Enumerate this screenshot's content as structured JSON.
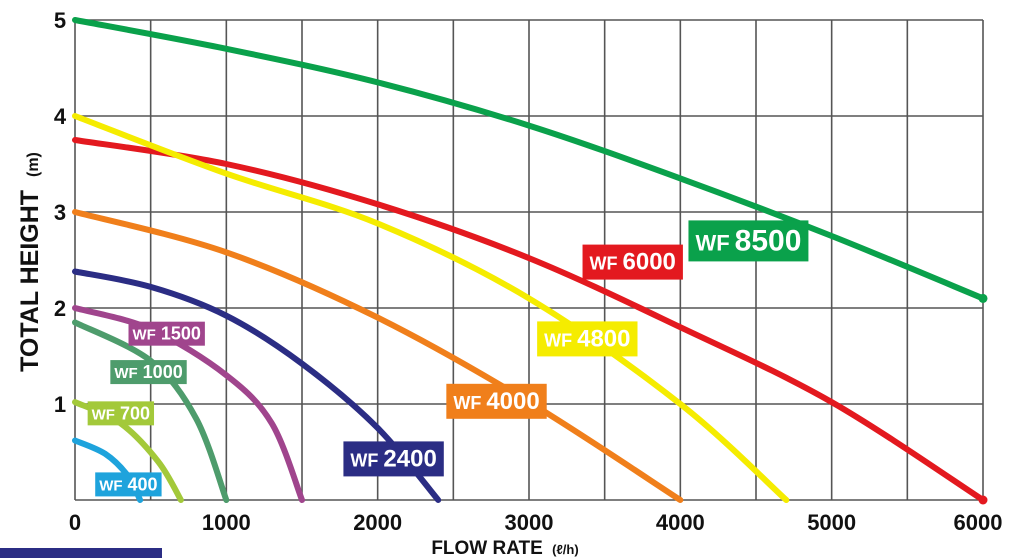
{
  "chart_data": {
    "type": "line",
    "xlabel": "FLOW RATE",
    "xunit": "(ℓ/h)",
    "ylabel": "TOTAL HEIGHT",
    "yunit": "(m)",
    "xlim": [
      0,
      6000
    ],
    "ylim": [
      0,
      5
    ],
    "x_ticks": [
      "0",
      "1000",
      "2000",
      "3000",
      "4000",
      "5000",
      "6000"
    ],
    "y_ticks": [
      "1",
      "2",
      "3",
      "4",
      "5"
    ],
    "grid": true,
    "series": [
      {
        "name": "WF 8500",
        "color": "#0aa14b",
        "points": [
          [
            0,
            5.0
          ],
          [
            1000,
            4.7
          ],
          [
            2000,
            4.35
          ],
          [
            3000,
            3.9
          ],
          [
            4000,
            3.35
          ],
          [
            5000,
            2.75
          ],
          [
            6000,
            2.1
          ]
        ]
      },
      {
        "name": "WF 6000",
        "color": "#e3191f",
        "points": [
          [
            0,
            3.75
          ],
          [
            1000,
            3.5
          ],
          [
            2000,
            3.08
          ],
          [
            3000,
            2.52
          ],
          [
            4000,
            1.8
          ],
          [
            5000,
            1.02
          ],
          [
            6000,
            0.0
          ]
        ]
      },
      {
        "name": "WF 4800",
        "color": "#f5ec00",
        "points": [
          [
            0,
            4.0
          ],
          [
            1000,
            3.4
          ],
          [
            2000,
            2.88
          ],
          [
            3000,
            2.1
          ],
          [
            4000,
            1.0
          ],
          [
            4700,
            0.0
          ]
        ]
      },
      {
        "name": "WF 4000",
        "color": "#f07f1b",
        "points": [
          [
            0,
            3.0
          ],
          [
            1000,
            2.58
          ],
          [
            2000,
            1.9
          ],
          [
            3000,
            1.02
          ],
          [
            4000,
            0.0
          ]
        ]
      },
      {
        "name": "WF 2400",
        "color": "#2b2d84",
        "points": [
          [
            0,
            2.38
          ],
          [
            500,
            2.22
          ],
          [
            1000,
            1.92
          ],
          [
            1500,
            1.42
          ],
          [
            2000,
            0.75
          ],
          [
            2400,
            0.0
          ]
        ]
      },
      {
        "name": "WF 1500",
        "color": "#a0458d",
        "points": [
          [
            0,
            2.0
          ],
          [
            500,
            1.78
          ],
          [
            1000,
            1.3
          ],
          [
            1300,
            0.8
          ],
          [
            1500,
            0.0
          ]
        ]
      },
      {
        "name": "WF 1000",
        "color": "#4e9c6c",
        "points": [
          [
            0,
            1.85
          ],
          [
            500,
            1.45
          ],
          [
            800,
            0.85
          ],
          [
            1000,
            0.0
          ]
        ]
      },
      {
        "name": "WF 700",
        "color": "#a3c93a",
        "points": [
          [
            0,
            1.02
          ],
          [
            300,
            0.8
          ],
          [
            550,
            0.4
          ],
          [
            700,
            0.0
          ]
        ]
      },
      {
        "name": "WF 400",
        "color": "#1ea3dc",
        "points": [
          [
            0,
            0.62
          ],
          [
            200,
            0.48
          ],
          [
            350,
            0.25
          ],
          [
            430,
            0.0
          ]
        ]
      }
    ],
    "labels": [
      {
        "series": "WF 8500",
        "x": 4100,
        "y": 2.6
      },
      {
        "series": "WF 6000",
        "x": 3400,
        "y": 2.4
      },
      {
        "series": "WF 4800",
        "x": 3100,
        "y": 1.6
      },
      {
        "series": "WF 4000",
        "x": 2500,
        "y": 0.95
      },
      {
        "series": "WF 2400",
        "x": 1820,
        "y": 0.35
      },
      {
        "series": "WF 1500",
        "x": 380,
        "y": 1.67
      },
      {
        "series": "WF 1000",
        "x": 260,
        "y": 1.27
      },
      {
        "series": "WF 700",
        "x": 110,
        "y": 0.84
      },
      {
        "series": "WF 400",
        "x": 160,
        "y": 0.1
      }
    ]
  }
}
